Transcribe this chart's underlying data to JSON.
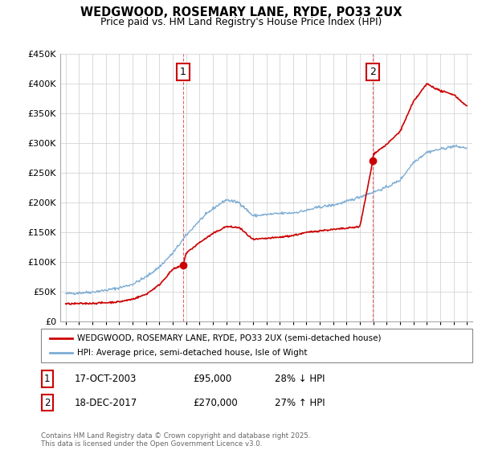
{
  "title": "WEDGWOOD, ROSEMARY LANE, RYDE, PO33 2UX",
  "subtitle": "Price paid vs. HM Land Registry's House Price Index (HPI)",
  "legend_line1": "WEDGWOOD, ROSEMARY LANE, RYDE, PO33 2UX (semi-detached house)",
  "legend_line2": "HPI: Average price, semi-detached house, Isle of Wight",
  "footer": "Contains HM Land Registry data © Crown copyright and database right 2025.\nThis data is licensed under the Open Government Licence v3.0.",
  "annotation1": {
    "label": "1",
    "date": "17-OCT-2003",
    "price": "£95,000",
    "pct": "28% ↓ HPI",
    "x_year": 2003.79
  },
  "annotation2": {
    "label": "2",
    "date": "18-DEC-2017",
    "price": "£270,000",
    "pct": "27% ↑ HPI",
    "x_year": 2017.96
  },
  "sale1_x": 2003.79,
  "sale1_y": 95000,
  "sale2_x": 2017.96,
  "sale2_y": 270000,
  "ylim": [
    0,
    450000
  ],
  "yticks": [
    0,
    50000,
    100000,
    150000,
    200000,
    250000,
    300000,
    350000,
    400000,
    450000
  ],
  "xlim_min": 1994.6,
  "xlim_max": 2025.4,
  "red_color": "#cc0000",
  "blue_color": "#7eadd4",
  "background_color": "#ffffff",
  "grid_color": "#cccccc",
  "hpi_years": [
    1995,
    1996,
    1997,
    1998,
    1999,
    2000,
    2001,
    2002,
    2003,
    2004,
    2005,
    2006,
    2007,
    2008,
    2009,
    2010,
    2011,
    2012,
    2013,
    2014,
    2015,
    2016,
    2017,
    2018,
    2019,
    2020,
    2021,
    2022,
    2023,
    2024,
    2025
  ],
  "hpi_vals": [
    47000,
    48500,
    50000,
    53000,
    57000,
    63000,
    75000,
    92000,
    115000,
    145000,
    170000,
    190000,
    205000,
    200000,
    178000,
    180000,
    182000,
    183000,
    187000,
    193000,
    196000,
    202000,
    210000,
    218000,
    226000,
    238000,
    268000,
    285000,
    290000,
    295000,
    292000
  ],
  "prop_years": [
    1995,
    1996,
    1997,
    1998,
    1999,
    2000,
    2001,
    2002,
    2003,
    2003.79,
    2004,
    2005,
    2006,
    2007,
    2008,
    2009,
    2010,
    2011,
    2012,
    2013,
    2014,
    2015,
    2016,
    2017,
    2017.96,
    2018,
    2019,
    2020,
    2021,
    2022,
    2023,
    2024,
    2025
  ],
  "prop_vals": [
    30000,
    30500,
    31000,
    32000,
    33500,
    38000,
    46000,
    62000,
    88000,
    95000,
    115000,
    133000,
    148000,
    160000,
    158000,
    138000,
    140000,
    142000,
    145000,
    150000,
    153000,
    155000,
    157000,
    160000,
    270000,
    282000,
    298000,
    320000,
    370000,
    400000,
    388000,
    382000,
    362000
  ]
}
